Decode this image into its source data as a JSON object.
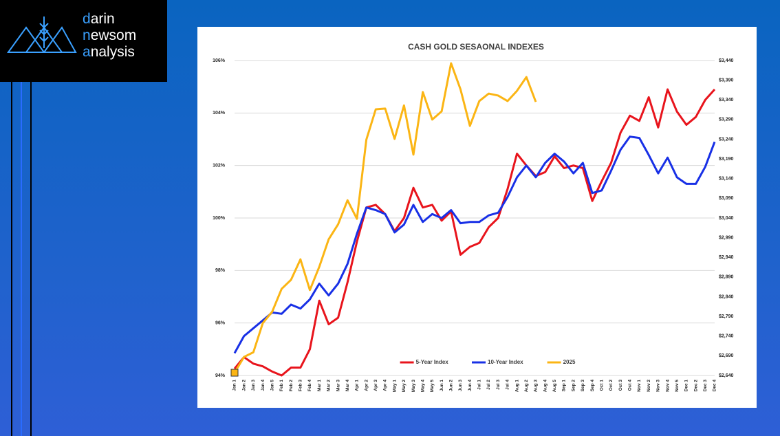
{
  "logo": {
    "lines": [
      {
        "accent": "d",
        "rest": "arin"
      },
      {
        "accent": "n",
        "rest": "ewsom"
      },
      {
        "accent": "a",
        "rest": "nalysis"
      }
    ]
  },
  "chart_data": {
    "type": "line",
    "title": "CASH GOLD SESAONAL INDEXES",
    "categories": [
      "Jan 1",
      "Jan 2",
      "Jan 3",
      "Jan 4",
      "Jan 5",
      "Feb 1",
      "Feb 2",
      "Feb 3",
      "Feb 4",
      "Mar 1",
      "Mar 2",
      "Mar 3",
      "Mar 4",
      "Apr 1",
      "Apr 2",
      "Apr 3",
      "Apr 4",
      "May 1",
      "May 2",
      "May 3",
      "May 4",
      "May 5",
      "Jun 1",
      "Jun 2",
      "Jun 3",
      "Jun 4",
      "Jul 1",
      "Jul 2",
      "Jul 3",
      "Jul 4",
      "Aug 1",
      "Aug 2",
      "Aug 3",
      "Aug 4",
      "Aug 5",
      "Sep 1",
      "Sep 2",
      "Sep 3",
      "Sep 4",
      "Oct 1",
      "Oct 2",
      "Oct 3",
      "Oct 4",
      "Nov 1",
      "Nov 2",
      "Nov 3",
      "Nov 4",
      "Nov 5",
      "Dec 1",
      "Dec 2",
      "Dec 3",
      "Dec 4"
    ],
    "series": [
      {
        "name": "5-Year Index",
        "color": "#e8141c",
        "values": [
          94.26,
          94.7,
          94.45,
          94.35,
          94.15,
          94.0,
          94.3,
          94.3,
          95.0,
          96.85,
          95.95,
          96.2,
          97.55,
          99.1,
          100.4,
          100.5,
          100.15,
          99.5,
          100.0,
          101.15,
          100.4,
          100.5,
          99.9,
          100.25,
          98.6,
          98.9,
          99.05,
          99.65,
          100.0,
          101.1,
          102.45,
          102.0,
          101.6,
          101.75,
          102.35,
          101.9,
          102.0,
          101.9,
          100.65,
          101.4,
          102.1,
          103.25,
          103.9,
          103.7,
          104.6,
          103.45,
          104.9,
          104.05,
          103.55,
          103.85,
          104.5,
          104.9
        ]
      },
      {
        "name": "10-Year Index",
        "color": "#1830e6",
        "values": [
          94.85,
          95.5,
          95.8,
          96.1,
          96.4,
          96.35,
          96.7,
          96.55,
          96.9,
          97.5,
          97.05,
          97.5,
          98.25,
          99.4,
          100.4,
          100.3,
          100.15,
          99.45,
          99.75,
          100.5,
          99.85,
          100.15,
          100.0,
          100.3,
          99.8,
          99.85,
          99.85,
          100.1,
          100.2,
          100.8,
          101.55,
          102.0,
          101.55,
          102.1,
          102.45,
          102.15,
          101.7,
          102.1,
          100.95,
          101.05,
          101.8,
          102.6,
          103.1,
          103.05,
          102.4,
          101.7,
          102.3,
          101.55,
          101.3,
          101.3,
          101.95,
          102.9
        ]
      },
      {
        "name": "2025",
        "color": "#fbb514",
        "axis": "y2",
        "values": [
          2647,
          2687,
          2699,
          2773,
          2802,
          2860,
          2883,
          2935,
          2857,
          2916,
          2986,
          3024,
          3085,
          3038,
          3239,
          3316,
          3318,
          3241,
          3326,
          3201,
          3360,
          3290,
          3311,
          3433,
          3367,
          3274,
          3337,
          3356,
          3351,
          3337,
          3363,
          3398,
          3335,
          null,
          null,
          null,
          null,
          null,
          null,
          null,
          null,
          null,
          null,
          null,
          null,
          null,
          null,
          null,
          null,
          null,
          null,
          null
        ]
      }
    ],
    "ylim": [
      94,
      106
    ],
    "yticks": [
      {
        "value": 94,
        "label": "94%"
      },
      {
        "value": 96,
        "label": "96%"
      },
      {
        "value": 98,
        "label": "98%"
      },
      {
        "value": 100,
        "label": "100%"
      },
      {
        "value": 102,
        "label": "102%"
      },
      {
        "value": 104,
        "label": "104%"
      },
      {
        "value": 106,
        "label": "106%"
      }
    ],
    "y2lim": [
      2640,
      3440
    ],
    "y2ticks": [
      {
        "value": 2640,
        "label": "$2,640"
      },
      {
        "value": 2690,
        "label": "$2,690"
      },
      {
        "value": 2740,
        "label": "$2,740"
      },
      {
        "value": 2790,
        "label": "$2,790"
      },
      {
        "value": 2840,
        "label": "$2,840"
      },
      {
        "value": 2890,
        "label": "$2,890"
      },
      {
        "value": 2940,
        "label": "$2,940"
      },
      {
        "value": 2990,
        "label": "$2,990"
      },
      {
        "value": 3040,
        "label": "$3,040"
      },
      {
        "value": 3090,
        "label": "$3,090"
      },
      {
        "value": 3140,
        "label": "$3,140"
      },
      {
        "value": 3190,
        "label": "$3,190"
      },
      {
        "value": 3240,
        "label": "$3,240"
      },
      {
        "value": 3290,
        "label": "$3,290"
      },
      {
        "value": 3340,
        "label": "$3,340"
      },
      {
        "value": 3390,
        "label": "$3,390"
      },
      {
        "value": 3440,
        "label": "$3,440"
      }
    ],
    "grid": true,
    "legend": "bottom"
  }
}
